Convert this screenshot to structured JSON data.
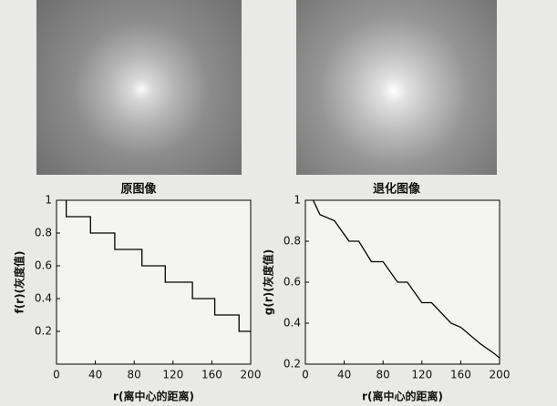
{
  "images": [
    {
      "caption": "原图像"
    },
    {
      "caption": "退化图像"
    }
  ],
  "chart_data": [
    {
      "type": "line",
      "color": "#000000",
      "x": [
        10,
        10,
        35,
        35,
        60,
        60,
        88,
        88,
        112,
        112,
        140,
        140,
        163,
        163,
        188,
        188,
        200
      ],
      "values": [
        1,
        0.9,
        0.9,
        0.8,
        0.8,
        0.7,
        0.7,
        0.6,
        0.6,
        0.5,
        0.5,
        0.4,
        0.4,
        0.3,
        0.3,
        0.2,
        0.2
      ],
      "xlim": [
        0,
        200
      ],
      "xticks": [
        0,
        40,
        80,
        120,
        160,
        200
      ],
      "ylim": [
        0,
        1
      ],
      "yticks": [
        0.2,
        0.4,
        0.6,
        0.8,
        1
      ],
      "xlabel": "r(离中心的距离)",
      "ylabel": "f(r)(灰度值)"
    },
    {
      "type": "line",
      "color": "#000000",
      "x": [
        8,
        15,
        30,
        45,
        55,
        68,
        80,
        95,
        105,
        120,
        130,
        150,
        160,
        180,
        195,
        200
      ],
      "values": [
        1,
        0.93,
        0.9,
        0.8,
        0.8,
        0.7,
        0.7,
        0.6,
        0.6,
        0.5,
        0.5,
        0.4,
        0.38,
        0.3,
        0.25,
        0.23
      ],
      "xlim": [
        0,
        200
      ],
      "xticks": [
        0,
        40,
        80,
        120,
        160,
        200
      ],
      "ylim": [
        0.2,
        1
      ],
      "yticks": [
        0.2,
        0.4,
        0.6,
        0.8,
        1
      ],
      "xlabel": "r(离中心的距离)",
      "ylabel": "g(r)(灰度值)"
    }
  ]
}
